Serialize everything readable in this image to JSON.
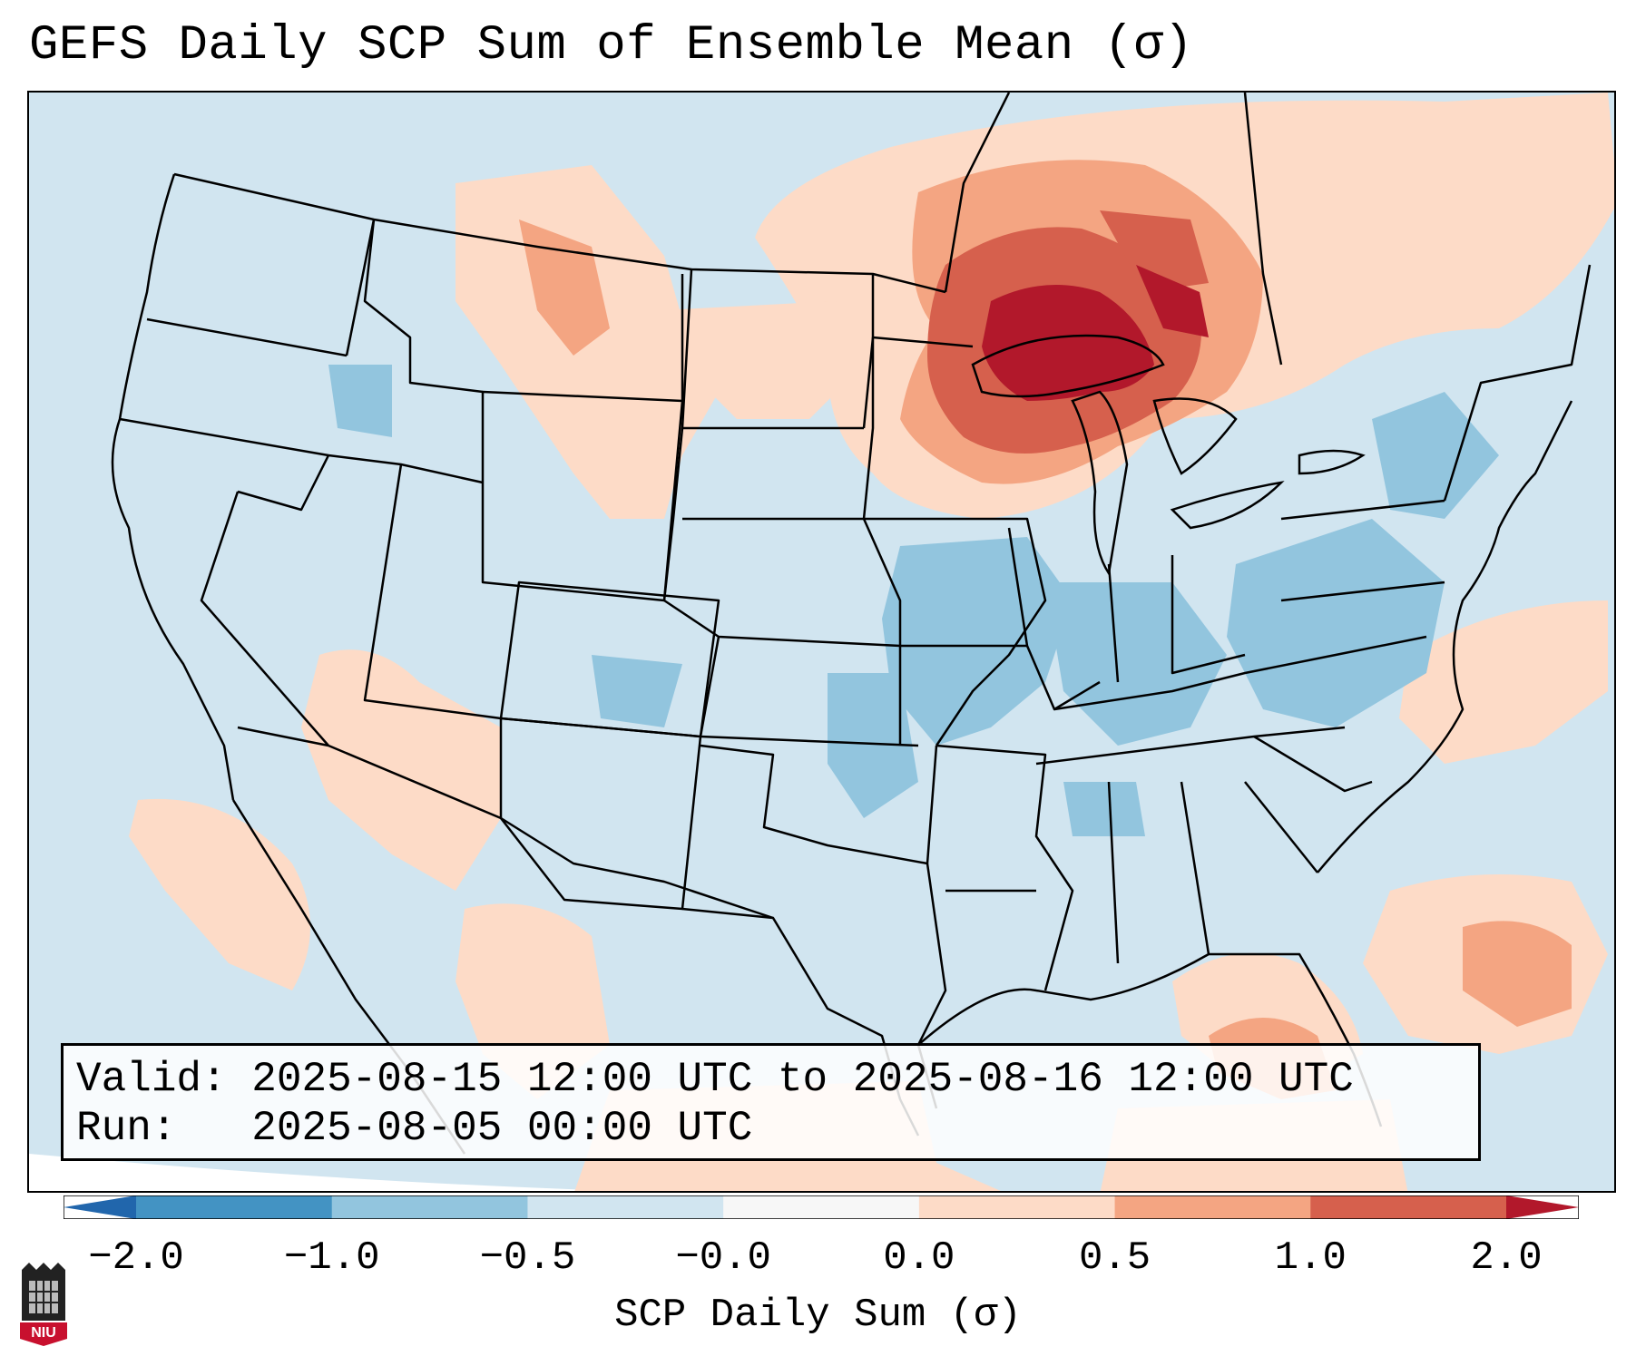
{
  "title": "GEFS Daily SCP Sum of Ensemble Mean (σ)",
  "map": {
    "projection": "Lambert conformal CONUS",
    "field": "SCP daily sum anomaly",
    "info": {
      "valid_label": "Valid:",
      "valid_value": "2025-08-15 12:00 UTC to 2025-08-16 12:00 UTC",
      "run_label": "Run:",
      "run_value": "2025-08-05 00:00 UTC"
    },
    "highlight_region": "Great Lakes / Upper Midwest / Ontario",
    "colors": {
      "background_ocean": "#d1e5f0",
      "neg_weak": "#d1e5f0",
      "neg_mod": "#92c5de",
      "pos_weak": "#fddbc7",
      "pos_mod": "#f4a582",
      "pos_strong": "#d6604d",
      "pos_extreme": "#b2182b",
      "border": "#000000"
    }
  },
  "colorbar": {
    "label": "SCP Daily Sum (σ)",
    "ticks": [
      "−2.0",
      "−1.0",
      "−0.5",
      "−0.0",
      "0.0",
      "0.5",
      "1.0",
      "2.0"
    ],
    "segments": [
      {
        "color": "#4393c3"
      },
      {
        "color": "#92c5de"
      },
      {
        "color": "#d1e5f0"
      },
      {
        "color": "#f7f7f7"
      },
      {
        "color": "#fddbc7"
      },
      {
        "color": "#f4a582"
      },
      {
        "color": "#d6604d"
      }
    ],
    "extend_low": "#2166ac",
    "extend_high": "#b2182b"
  },
  "logo": {
    "text": "NIU"
  }
}
